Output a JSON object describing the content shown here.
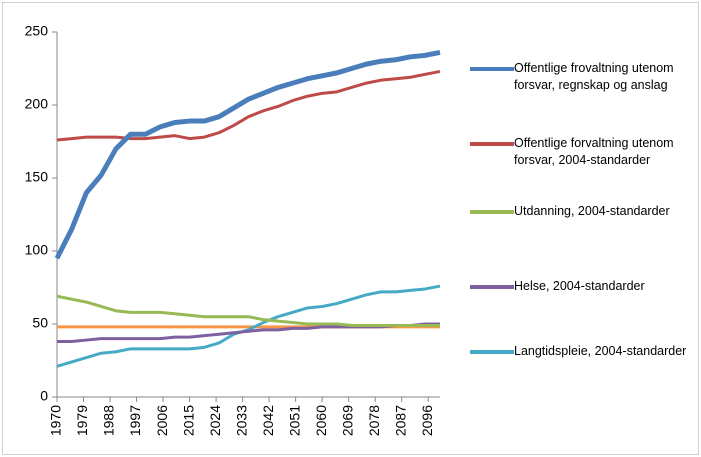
{
  "chart_data": {
    "type": "line",
    "x": [
      1970,
      1975,
      1980,
      1985,
      1990,
      1995,
      2000,
      2005,
      2010,
      2015,
      2020,
      2025,
      2030,
      2035,
      2040,
      2045,
      2050,
      2055,
      2060,
      2065,
      2070,
      2075,
      2080,
      2085,
      2090,
      2095,
      2100
    ],
    "series": [
      {
        "name": "Offentlige frovaltning utenom forsvar, regnskap og anslag",
        "color": "#4a7ebb",
        "values": [
          95,
          115,
          140,
          152,
          170,
          180,
          180,
          185,
          188,
          189,
          189,
          192,
          198,
          204,
          208,
          212,
          215,
          218,
          220,
          222,
          225,
          228,
          230,
          231,
          233,
          234,
          236
        ]
      },
      {
        "name": "Offentlige forvaltning utenom forsvar, 2004-standarder",
        "color": "#be4b48",
        "values": [
          176,
          177,
          178,
          178,
          178,
          177,
          177,
          178,
          179,
          177,
          178,
          181,
          186,
          192,
          196,
          199,
          203,
          206,
          208,
          209,
          212,
          215,
          217,
          218,
          219,
          221,
          223
        ]
      },
      {
        "name": "Utdanning, 2004-standarder",
        "color": "#98b954",
        "values": [
          69,
          67,
          65,
          62,
          59,
          58,
          58,
          58,
          57,
          56,
          55,
          55,
          55,
          55,
          53,
          52,
          51,
          50,
          50,
          50,
          49,
          49,
          49,
          49,
          49,
          49,
          49
        ]
      },
      {
        "name": "Helse, 2004-standarder",
        "color": "#7d60a0",
        "values": [
          38,
          38,
          39,
          40,
          40,
          40,
          40,
          40,
          41,
          41,
          42,
          43,
          44,
          45,
          46,
          46,
          47,
          47,
          48,
          48,
          48,
          48,
          48,
          49,
          49,
          50,
          50
        ]
      },
      {
        "name": "Langtidspleie, 2004-standarder",
        "color": "#46aac5",
        "values": [
          21,
          24,
          27,
          30,
          31,
          33,
          33,
          33,
          33,
          33,
          34,
          37,
          43,
          46,
          51,
          55,
          58,
          61,
          62,
          64,
          67,
          70,
          72,
          72,
          73,
          74,
          76
        ]
      },
      {
        "color": "#f79646",
        "values": [
          48,
          48,
          48,
          48,
          48,
          48,
          48,
          48,
          48,
          48,
          48,
          48,
          48,
          48,
          48,
          48,
          48,
          48,
          48,
          48,
          48,
          48,
          48,
          48,
          48,
          48,
          48
        ]
      }
    ],
    "xlim": [
      1970,
      2100
    ],
    "xticks": [
      1970,
      1979,
      1988,
      1997,
      2006,
      2015,
      2024,
      2033,
      2042,
      2051,
      2060,
      2069,
      2078,
      2087,
      2096
    ],
    "ylim": [
      0,
      250
    ],
    "yticks": [
      0,
      50,
      100,
      150,
      200,
      250
    ]
  }
}
